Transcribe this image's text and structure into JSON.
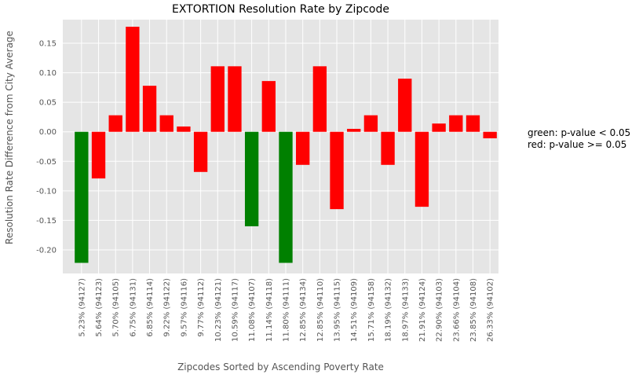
{
  "chart_data": {
    "type": "bar",
    "title": "EXTORTION Resolution Rate by Zipcode",
    "xlabel": "Zipcodes Sorted by Ascending Poverty Rate",
    "ylabel": "Resolution Rate Difference from City Average",
    "ylim": [
      -0.24,
      0.19
    ],
    "yticks": [
      -0.2,
      -0.15,
      -0.1,
      -0.05,
      0.0,
      0.05,
      0.1,
      0.15
    ],
    "ytick_labels": [
      "-0.20",
      "-0.15",
      "-0.10",
      "-0.05",
      "0.00",
      "0.05",
      "0.10",
      "0.15"
    ],
    "grid": true,
    "categories": [
      "5.23% (94127)",
      "5.64% (94123)",
      "5.70% (94105)",
      "6.75% (94131)",
      "6.85% (94114)",
      "9.22% (94122)",
      "9.57% (94116)",
      "9.77% (94112)",
      "10.23% (94121)",
      "10.59% (94117)",
      "11.08% (94107)",
      "11.14% (94118)",
      "11.80% (94111)",
      "12.85% (94134)",
      "12.85% (94110)",
      "13.95% (94115)",
      "14.51% (94109)",
      "15.71% (94158)",
      "18.19% (94132)",
      "18.97% (94133)",
      "21.91% (94124)",
      "22.90% (94103)",
      "23.66% (94104)",
      "23.85% (94108)",
      "26.33% (94102)"
    ],
    "values": [
      -0.222,
      -0.079,
      0.028,
      0.178,
      0.078,
      0.028,
      0.009,
      -0.068,
      0.111,
      0.111,
      -0.16,
      0.086,
      -0.222,
      -0.056,
      0.111,
      -0.131,
      0.005,
      0.028,
      -0.056,
      0.09,
      -0.127,
      0.014,
      0.028,
      0.028,
      -0.011
    ],
    "significant": [
      true,
      false,
      false,
      false,
      false,
      false,
      false,
      false,
      false,
      false,
      true,
      false,
      true,
      false,
      false,
      false,
      false,
      false,
      false,
      false,
      false,
      false,
      false,
      false,
      false
    ],
    "colors": {
      "significant": "#008000",
      "not_significant": "#ff0000",
      "background": "#e5e5e5",
      "grid": "#ffffff"
    },
    "annotations": [
      "green: p-value < 0.05",
      "red: p-value >= 0.05"
    ]
  }
}
